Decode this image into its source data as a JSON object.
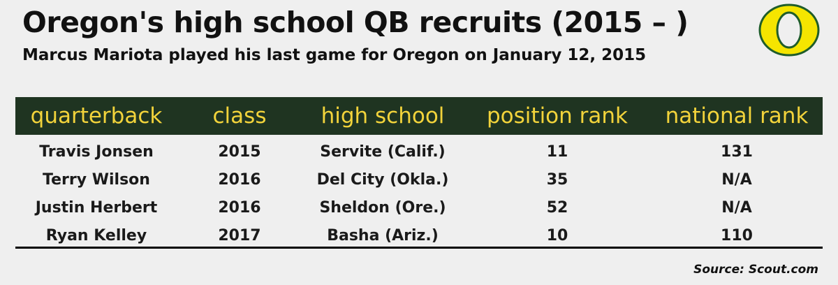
{
  "title": "Oregon's high school QB recruits (2015 – )",
  "subtitle": "Marcus Mariota played his last game for Oregon on January 12, 2015",
  "logo": {
    "icon": "oregon-o-logo",
    "fill": "#f5e500",
    "stroke": "#1f5d2a"
  },
  "colors": {
    "header_bg": "#1f3421",
    "header_text": "#f2d33b",
    "background": "#efefef"
  },
  "chart_data": {
    "type": "table",
    "columns": [
      "quarterback",
      "class",
      "high school",
      "position rank",
      "national rank"
    ],
    "rows": [
      [
        "Travis Jonsen",
        "2015",
        "Servite (Calif.)",
        "11",
        "131"
      ],
      [
        "Terry Wilson",
        "2016",
        "Del City (Okla.)",
        "35",
        "N/A"
      ],
      [
        "Justin Herbert",
        "2016",
        "Sheldon (Ore.)",
        "52",
        "N/A"
      ],
      [
        "Ryan Kelley",
        "2017",
        "Basha (Ariz.)",
        "10",
        "110"
      ]
    ]
  },
  "source": "Source: Scout.com"
}
